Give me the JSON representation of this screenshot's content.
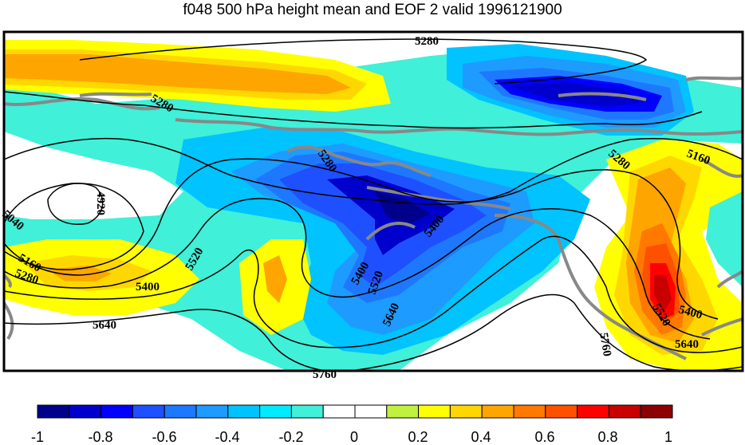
{
  "title": "f048 500 hPa height mean and EOF 2 valid 1996121900",
  "contour_labels": [
    "5280",
    "5280",
    "5280",
    "5280",
    "5160",
    "5400",
    "5400",
    "4920",
    "5040",
    "5160",
    "5280",
    "5400",
    "5520",
    "5640",
    "5520",
    "5640",
    "5400",
    "5520",
    "5640",
    "5760",
    "5760"
  ],
  "colorbar": {
    "colors": [
      "#00008b",
      "#0000cd",
      "#0000ff",
      "#1e50ff",
      "#1e78ff",
      "#1e9bff",
      "#00c3ff",
      "#00ebff",
      "#40f0d8",
      "#ffffff",
      "#ffffff",
      "#c0f040",
      "#ffff00",
      "#ffd700",
      "#ffa500",
      "#ff7800",
      "#ff5000",
      "#ff0000",
      "#c80000",
      "#8b0000"
    ],
    "tick_labels": [
      "-1",
      "-0.8",
      "-0.6",
      "-0.4",
      "-0.2",
      "0",
      "0.2",
      "0.4",
      "0.6",
      "0.8",
      "1"
    ]
  }
}
